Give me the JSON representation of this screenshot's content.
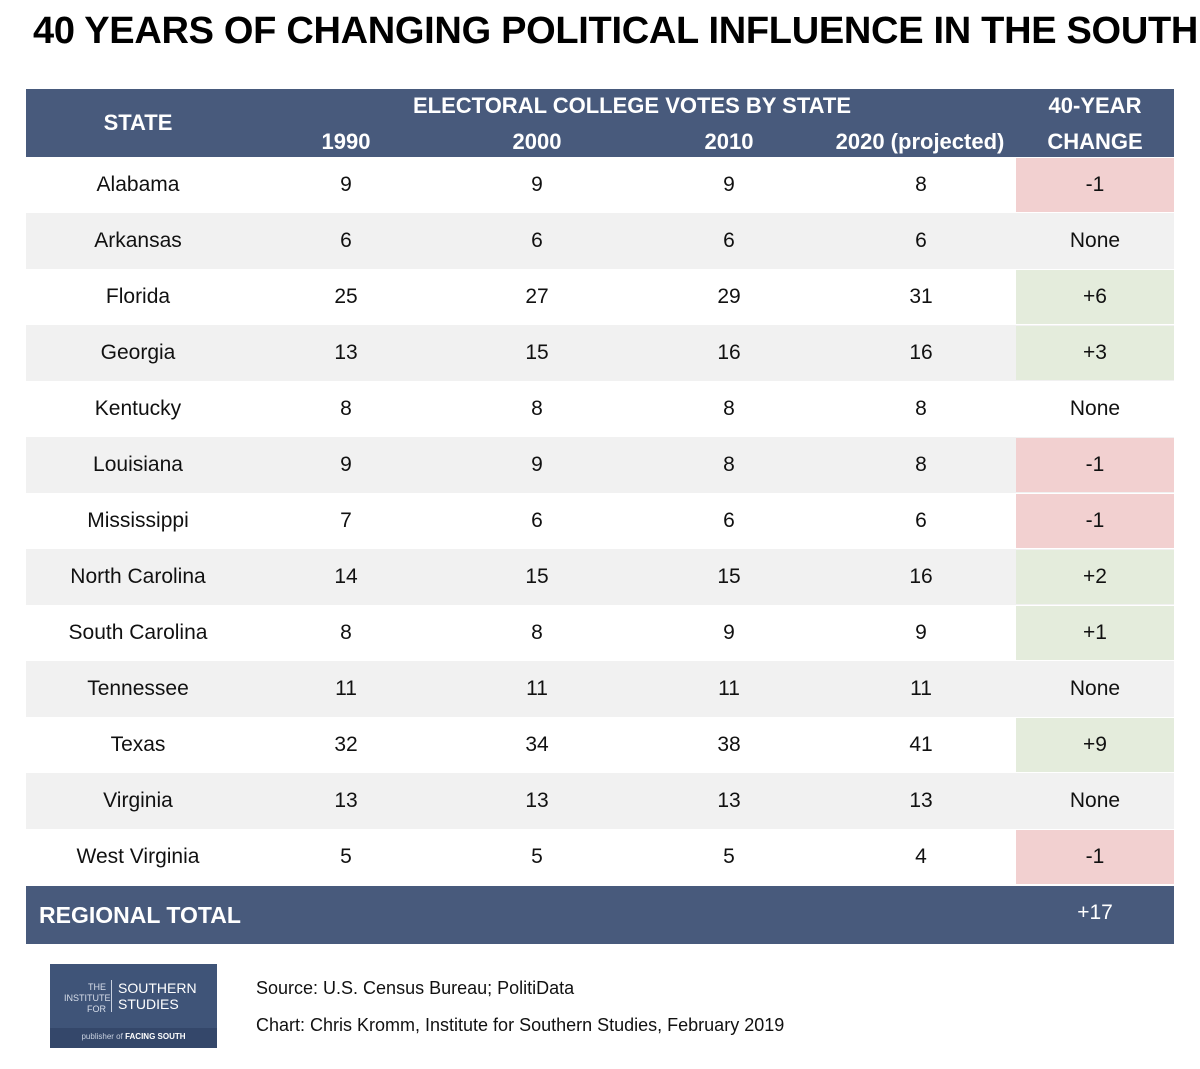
{
  "title": "40 YEARS OF CHANGING POLITICAL INFLUENCE IN THE SOUTH",
  "header": {
    "state": "STATE",
    "group": "ELECTORAL COLLEGE VOTES BY STATE",
    "years": [
      "1990",
      "2000",
      "2010",
      "2020 (projected)"
    ],
    "change_line1": "40-YEAR",
    "change_line2": "CHANGE"
  },
  "chart_data": {
    "type": "table",
    "title": "40 YEARS OF CHANGING POLITICAL INFLUENCE IN THE SOUTH",
    "columns": [
      "STATE",
      "1990",
      "2000",
      "2010",
      "2020 (projected)",
      "40-YEAR CHANGE"
    ],
    "rows": [
      {
        "state": "Alabama",
        "values": [
          "9",
          "9",
          "9",
          "8"
        ],
        "change": "-1",
        "trend": "neg"
      },
      {
        "state": "Arkansas",
        "values": [
          "6",
          "6",
          "6",
          "6"
        ],
        "change": "None",
        "trend": "none"
      },
      {
        "state": "Florida",
        "values": [
          "25",
          "27",
          "29",
          "31"
        ],
        "change": "+6",
        "trend": "pos"
      },
      {
        "state": "Georgia",
        "values": [
          "13",
          "15",
          "16",
          "16"
        ],
        "change": "+3",
        "trend": "pos"
      },
      {
        "state": "Kentucky",
        "values": [
          "8",
          "8",
          "8",
          "8"
        ],
        "change": "None",
        "trend": "none"
      },
      {
        "state": "Louisiana",
        "values": [
          "9",
          "9",
          "8",
          "8"
        ],
        "change": "-1",
        "trend": "neg"
      },
      {
        "state": "Mississippi",
        "values": [
          "7",
          "6",
          "6",
          "6"
        ],
        "change": "-1",
        "trend": "neg"
      },
      {
        "state": "North Carolina",
        "values": [
          "14",
          "15",
          "15",
          "16"
        ],
        "change": "+2",
        "trend": "pos"
      },
      {
        "state": "South Carolina",
        "values": [
          "8",
          "8",
          "9",
          "9"
        ],
        "change": "+1",
        "trend": "pos"
      },
      {
        "state": "Tennessee",
        "values": [
          "11",
          "11",
          "11",
          "11"
        ],
        "change": "None",
        "trend": "none"
      },
      {
        "state": "Texas",
        "values": [
          "32",
          "34",
          "38",
          "41"
        ],
        "change": "+9",
        "trend": "pos"
      },
      {
        "state": "Virginia",
        "values": [
          "13",
          "13",
          "13",
          "13"
        ],
        "change": "None",
        "trend": "none"
      },
      {
        "state": "West Virginia",
        "values": [
          "5",
          "5",
          "5",
          "4"
        ],
        "change": "-1",
        "trend": "neg"
      }
    ],
    "total": {
      "label": "REGIONAL TOTAL",
      "change": "+17"
    }
  },
  "colors": {
    "header": "#485a7c",
    "negative": "#f2d0d0",
    "positive": "#e4ecdc",
    "alt_row": "#f1f1f1"
  },
  "logo": {
    "prefix": [
      "THE",
      "INSTITUTE",
      "FOR"
    ],
    "name": [
      "SOUTHERN",
      "STUDIES"
    ],
    "publisher_prefix": "publisher of",
    "publisher_name": "FACING SOUTH"
  },
  "source": "Source: U.S. Census Bureau; PolitiData",
  "credit": "Chart: Chris Kromm, Institute for Southern Studies, February 2019"
}
